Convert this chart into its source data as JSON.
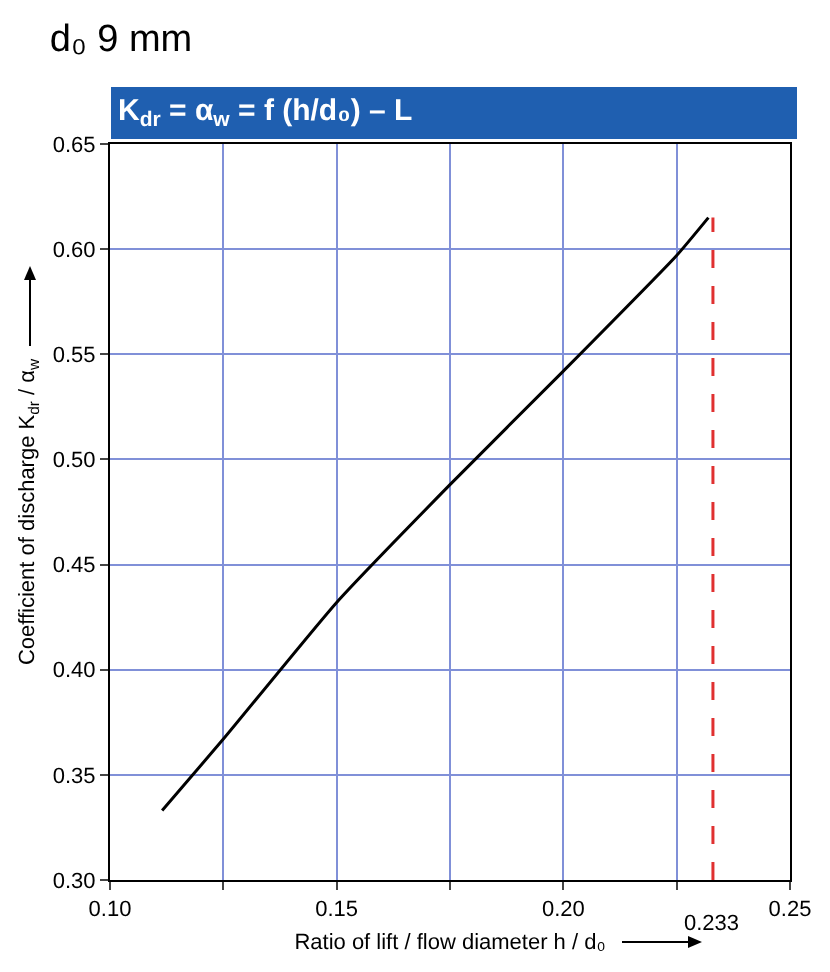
{
  "chart_data": {
    "type": "line",
    "title": "d₀ 9 mm",
    "subtitle": "K$_{dr}$ = α$_{w}$ = f (h/d₀) – L",
    "xlabel": "Ratio of lift / flow diameter h / d₀",
    "ylabel": "Coefficient of discharge K$_{dr}$ / α$_{w}$",
    "series": [
      {
        "color": "#000000",
        "x": [
          0.1115,
          0.125,
          0.15,
          0.175,
          0.2,
          0.225,
          0.232
        ],
        "values": [
          0.333,
          0.367,
          0.432,
          0.488,
          0.542,
          0.597,
          0.615
        ]
      }
    ],
    "xlim": [
      0.1,
      0.25
    ],
    "xticks": [
      {
        "value": 0.1,
        "label": "0.10"
      },
      {
        "value": 0.125,
        "label": null
      },
      {
        "value": 0.15,
        "label": "0.15"
      },
      {
        "value": 0.175,
        "label": null
      },
      {
        "value": 0.2,
        "label": "0.20"
      },
      {
        "value": 0.225,
        "label": null
      },
      {
        "value": 0.25,
        "label": "0.25"
      }
    ],
    "ylim": [
      0.3,
      0.65
    ],
    "yticks": [
      {
        "value": 0.3,
        "label": "0.30"
      },
      0.35,
      {
        "value": 0.4,
        "label": "0.40"
      },
      0.45,
      {
        "value": 0.5,
        "label": "0.50"
      },
      0.55,
      {
        "value": 0.6,
        "label": "0.60"
      },
      0.65
    ],
    "ref_lines": [
      {
        "axis": "x",
        "value": 0.233,
        "label": "0.233",
        "color": "#e03030",
        "line_style": "dashed"
      }
    ],
    "grid": true,
    "marker": "none",
    "line_style": "solid"
  }
}
